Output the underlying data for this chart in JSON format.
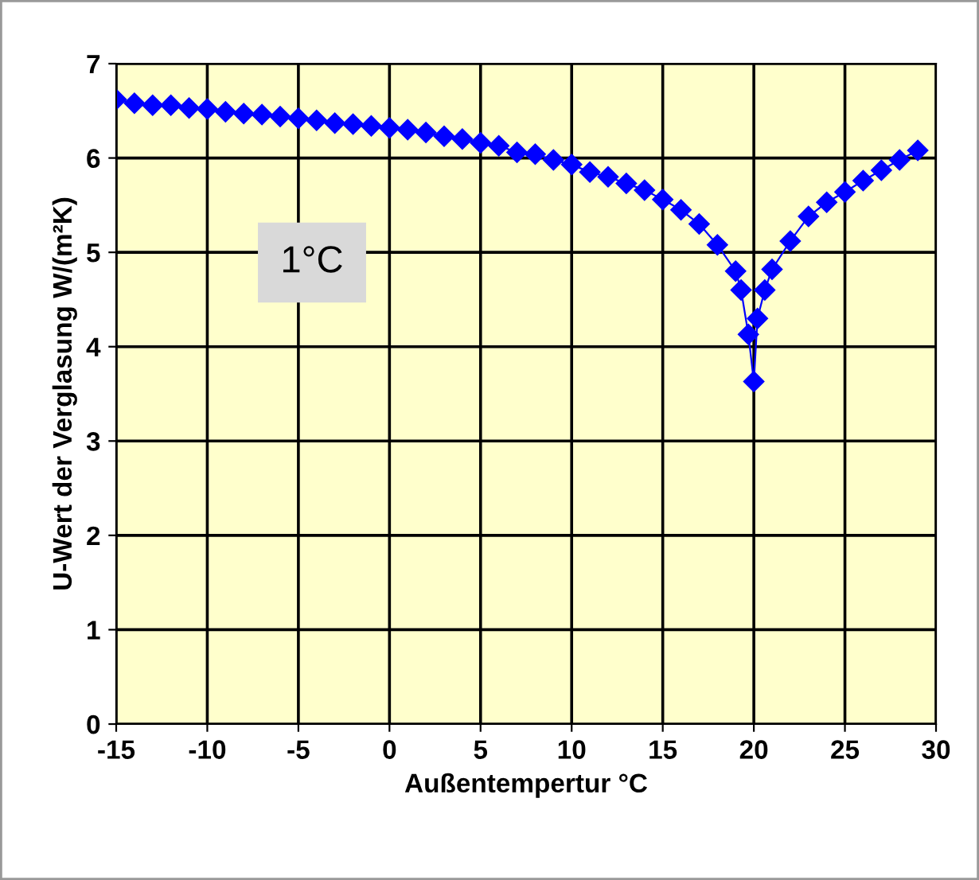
{
  "chart_data": {
    "type": "line",
    "xlabel": "Außentempertur °C",
    "ylabel": "U-Wert der Verglasung W/(m²K)",
    "annotations": [
      "1°C"
    ],
    "x": [
      -15,
      -14,
      -13,
      -12,
      -11,
      -10,
      -9,
      -8,
      -7,
      -6,
      -5,
      -4,
      -3,
      -2,
      -1,
      0,
      1,
      2,
      3,
      4,
      5,
      6,
      7,
      8,
      9,
      10,
      11,
      12,
      13,
      14,
      15,
      16,
      17,
      18,
      19,
      19.3,
      19.7,
      20,
      20.2,
      20.6,
      21,
      22,
      23,
      24,
      25,
      26,
      27,
      28,
      29
    ],
    "series": [
      {
        "color": "#0000ff",
        "values": [
          6.62,
          6.58,
          6.56,
          6.56,
          6.53,
          6.52,
          6.49,
          6.47,
          6.46,
          6.44,
          6.42,
          6.4,
          6.37,
          6.36,
          6.34,
          6.32,
          6.3,
          6.27,
          6.23,
          6.2,
          6.16,
          6.13,
          6.06,
          6.04,
          5.98,
          5.93,
          5.85,
          5.8,
          5.73,
          5.66,
          5.56,
          5.45,
          5.3,
          5.08,
          4.8,
          4.6,
          4.13,
          3.63,
          4.3,
          4.6,
          4.82,
          5.12,
          5.38,
          5.53,
          5.64,
          5.76,
          5.87,
          5.98,
          6.08
        ]
      }
    ],
    "xlim": [
      -15,
      30
    ],
    "xticks": [
      -15,
      -10,
      -5,
      0,
      5,
      10,
      15,
      20,
      25,
      30
    ],
    "ylim": [
      0,
      7
    ],
    "yticks": [
      0,
      1,
      2,
      3,
      4,
      5,
      6,
      7
    ],
    "grid": true,
    "marker": "diamond",
    "line_style": "solid",
    "legend": false
  }
}
